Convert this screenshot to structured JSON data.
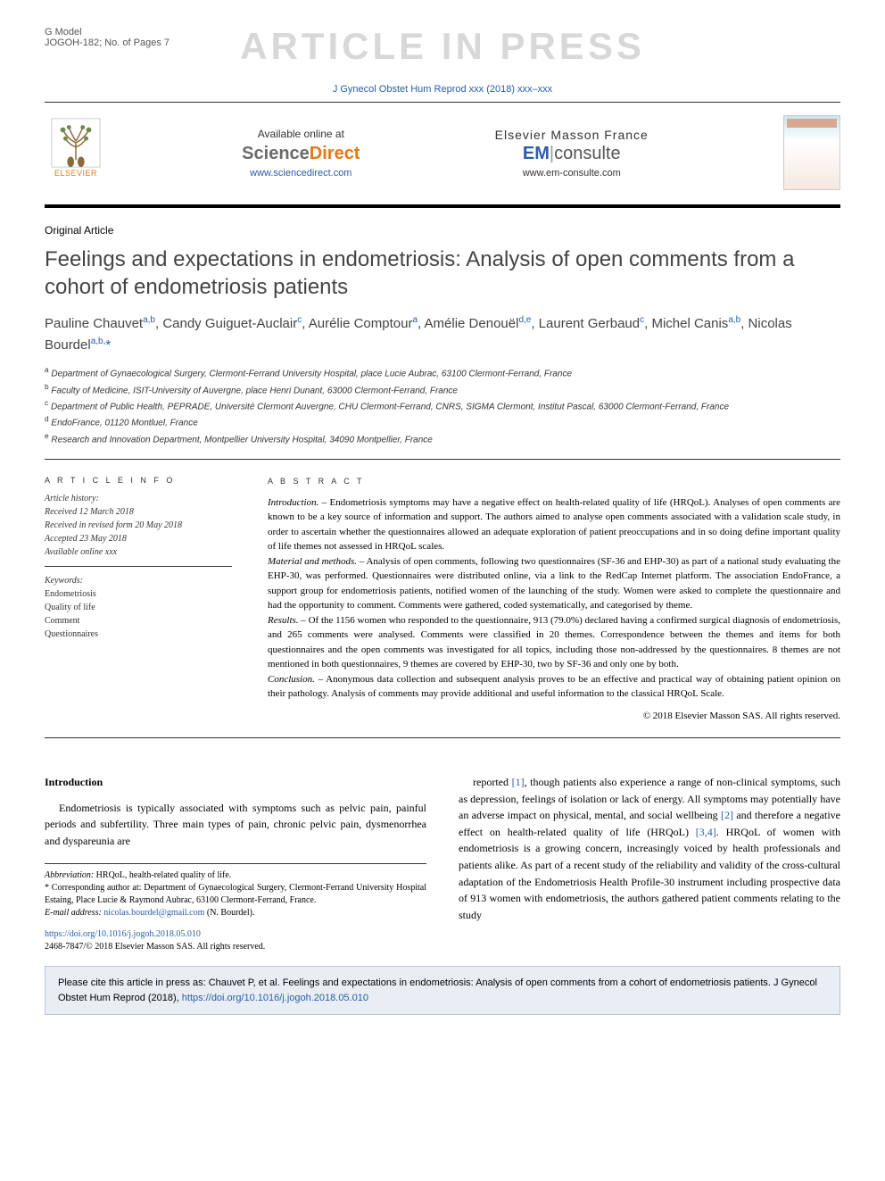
{
  "header": {
    "gmodel_line1": "G Model",
    "gmodel_line2": "JOGOH-182; No. of Pages 7",
    "watermark": "ARTICLE IN PRESS",
    "journal_ref": "J Gynecol Obstet Hum Reprod xxx (2018) xxx–xxx"
  },
  "banner": {
    "elsevier_label": "ELSEVIER",
    "available_text": "Available online at",
    "sd_science": "Science",
    "sd_direct": "Direct",
    "sd_url": "www.sciencedirect.com",
    "em_france": "Elsevier Masson France",
    "em_em": "EM",
    "em_consulte": "consulte",
    "em_url": "www.em-consulte.com"
  },
  "article": {
    "type": "Original Article",
    "title": "Feelings and expectations in endometriosis: Analysis of open comments from a cohort of endometriosis patients",
    "authors_html": "Pauline Chauvet<sup>a,b</sup>, Candy Guiguet-Auclair<sup>c</sup>, Aurélie Comptour<sup>a</sup>, Amélie Denouël<sup>d,e</sup>, Laurent Gerbaud<sup>c</sup>, Michel Canis<sup>a,b</sup>, Nicolas Bourdel<sup>a,b,</sup><span class='star'>*</span>",
    "affiliations": [
      "<sup>a</sup> Department of Gynaecological Surgery, Clermont-Ferrand University Hospital, place Lucie Aubrac, 63100 Clermont-Ferrand, France",
      "<sup>b</sup> Faculty of Medicine, ISIT-University of Auvergne, place Henri Dunant, 63000 Clermont-Ferrand, France",
      "<sup>c</sup> Department of Public Health, PEPRADE, Université Clermont Auvergne, CHU Clermont-Ferrand, CNRS, SIGMA Clermont, Institut Pascal, 63000 Clermont-Ferrand, France",
      "<sup>d</sup> EndoFrance, 01120 Montluel, France",
      "<sup>e</sup> Research and Innovation Department, Montpellier University Hospital, 34090 Montpellier, France"
    ]
  },
  "info": {
    "heading": "A R T I C L E   I N F O",
    "history_label": "Article history:",
    "history": [
      "Received 12 March 2018",
      "Received in revised form 20 May 2018",
      "Accepted 23 May 2018",
      "Available online xxx"
    ],
    "keywords_label": "Keywords:",
    "keywords": [
      "Endometriosis",
      "Quality of life",
      "Comment",
      "Questionnaires"
    ]
  },
  "abstract": {
    "heading": "A B S T R A C T",
    "intro_label": "Introduction. –",
    "intro": " Endometriosis symptoms may have a negative effect on health-related quality of life (HRQoL). Analyses of open comments are known to be a key source of information and support. The authors aimed to analyse open comments associated with a validation scale study, in order to ascertain whether the questionnaires allowed an adequate exploration of patient preoccupations and in so doing define important quality of life themes not assessed in HRQoL scales.",
    "methods_label": "Material and methods. –",
    "methods": " Analysis of open comments, following two questionnaires (SF-36 and EHP-30) as part of a national study evaluating the EHP-30, was performed. Questionnaires were distributed online, via a link to the RedCap Internet platform. The association EndoFrance, a support group for endometriosis patients, notified women of the launching of the study. Women were asked to complete the questionnaire and had the opportunity to comment. Comments were gathered, coded systematically, and categorised by theme.",
    "results_label": "Results. –",
    "results": " Of the 1156 women who responded to the questionnaire, 913 (79.0%) declared having a confirmed surgical diagnosis of endometriosis, and 265 comments were analysed. Comments were classified in 20 themes. Correspondence between the themes and items for both questionnaires and the open comments was investigated for all topics, including those non-addressed by the questionnaires. 8 themes are not mentioned in both questionnaires, 9 themes are covered by EHP-30, two by SF-36 and only one by both.",
    "conclusion_label": "Conclusion. –",
    "conclusion": " Anonymous data collection and subsequent analysis proves to be an effective and practical way of obtaining patient opinion on their pathology. Analysis of comments may provide additional and useful information to the classical HRQoL Scale.",
    "copyright": "© 2018 Elsevier Masson SAS. All rights reserved."
  },
  "body": {
    "intro_heading": "Introduction",
    "left_para": "Endometriosis is typically associated with symptoms such as pelvic pain, painful periods and subfertility. Three main types of pain, chronic pelvic pain, dysmenorrhea and dyspareunia are",
    "right_para_pre": "reported ",
    "right_ref1": "[1]",
    "right_para_mid1": ", though patients also experience a range of non-clinical symptoms, such as depression, feelings of isolation or lack of energy. All symptoms may potentially have an adverse impact on physical, mental, and social wellbeing ",
    "right_ref2": "[2]",
    "right_para_mid2": " and therefore a negative effect on health-related quality of life (HRQoL) ",
    "right_ref3": "[3,4]",
    "right_para_end": ". HRQoL of women with endometriosis is a growing concern, increasingly voiced by health professionals and patients alike. As part of a recent study of the reliability and validity of the cross-cultural adaptation of the Endometriosis Health Profile-30 instrument including prospective data of 913 women with endometriosis, the authors gathered patient comments relating to the study"
  },
  "footnotes": {
    "abbrev_label": "Abbreviation:",
    "abbrev": " HRQoL, health-related quality of life.",
    "corr_label": "* Corresponding author at:",
    "corr": " Department of Gynaecological Surgery, Clermont-Ferrand University Hospital Estaing, Place Lucie & Raymond Aubrac, 63100 Clermont-Ferrand, France.",
    "email_label": "E-mail address:",
    "email": " nicolas.bourdel@gmail.com",
    "email_author": " (N. Bourdel)."
  },
  "doi": {
    "link": "https://doi.org/10.1016/j.jogoh.2018.05.010",
    "issn_line": "2468-7847/© 2018 Elsevier Masson SAS. All rights reserved."
  },
  "citebox": {
    "text_pre": "Please cite this article in press as: Chauvet P, et al. Feelings and expectations in endometriosis: Analysis of open comments from a cohort of endometriosis patients. J Gynecol Obstet Hum Reprod (2018), ",
    "link": "https://doi.org/10.1016/j.jogoh.2018.05.010"
  },
  "colors": {
    "link": "#2a5caa",
    "elsevier_orange": "#e67817",
    "watermark": "#d8d8d8",
    "citebox_bg": "#e9eef4",
    "citebox_border": "#b8c4d4"
  }
}
